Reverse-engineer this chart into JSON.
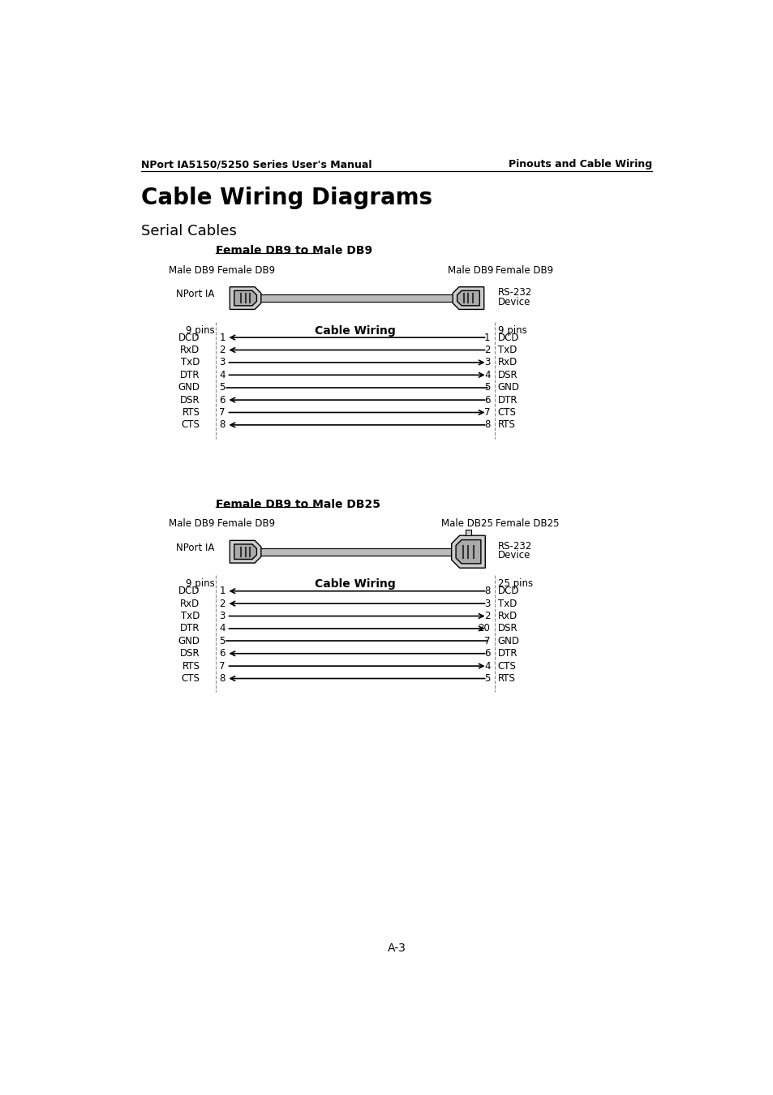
{
  "page_header_left": "NPort IA5150/5250 Series User's Manual",
  "page_header_right": "Pinouts and Cable Wiring",
  "main_title": "Cable Wiring Diagrams",
  "subtitle": "Serial Cables",
  "page_footer": "A-3",
  "diagram1": {
    "title": "Female DB9 to Male DB9",
    "left_col1": "Male DB9",
    "left_col2": "Female DB9",
    "right_col1": "Male DB9",
    "right_col2": "Female DB9",
    "left_label": "NPort IA",
    "right_label1": "RS-232",
    "right_label2": "Device",
    "left_pins_label": "9 pins",
    "right_pins_label": "9 pins",
    "cable_wiring_label": "Cable Wiring",
    "is_db25": false,
    "connections": [
      {
        "left_signal": "DCD",
        "left_pin": "1",
        "right_pin": "1",
        "right_signal": "DCD",
        "direction": "left"
      },
      {
        "left_signal": "RxD",
        "left_pin": "2",
        "right_pin": "2",
        "right_signal": "TxD",
        "direction": "left"
      },
      {
        "left_signal": "TxD",
        "left_pin": "3",
        "right_pin": "3",
        "right_signal": "RxD",
        "direction": "right"
      },
      {
        "left_signal": "DTR",
        "left_pin": "4",
        "right_pin": "4",
        "right_signal": "DSR",
        "direction": "right"
      },
      {
        "left_signal": "GND",
        "left_pin": "5",
        "right_pin": "5",
        "right_signal": "GND",
        "direction": "none"
      },
      {
        "left_signal": "DSR",
        "left_pin": "6",
        "right_pin": "6",
        "right_signal": "DTR",
        "direction": "left"
      },
      {
        "left_signal": "RTS",
        "left_pin": "7",
        "right_pin": "7",
        "right_signal": "CTS",
        "direction": "right"
      },
      {
        "left_signal": "CTS",
        "left_pin": "8",
        "right_pin": "8",
        "right_signal": "RTS",
        "direction": "left"
      }
    ]
  },
  "diagram2": {
    "title": "Female DB9 to Male DB25",
    "left_col1": "Male DB9",
    "left_col2": "Female DB9",
    "right_col1": "Male DB25",
    "right_col2": "Female DB25",
    "left_label": "NPort IA",
    "right_label1": "RS-232",
    "right_label2": "Device",
    "left_pins_label": "9 pins",
    "right_pins_label": "25 pins",
    "cable_wiring_label": "Cable Wiring",
    "is_db25": true,
    "connections": [
      {
        "left_signal": "DCD",
        "left_pin": "1",
        "right_pin": "8",
        "right_signal": "DCD",
        "direction": "left"
      },
      {
        "left_signal": "RxD",
        "left_pin": "2",
        "right_pin": "3",
        "right_signal": "TxD",
        "direction": "left"
      },
      {
        "left_signal": "TxD",
        "left_pin": "3",
        "right_pin": "2",
        "right_signal": "RxD",
        "direction": "right"
      },
      {
        "left_signal": "DTR",
        "left_pin": "4",
        "right_pin": "20",
        "right_signal": "DSR",
        "direction": "right"
      },
      {
        "left_signal": "GND",
        "left_pin": "5",
        "right_pin": "7",
        "right_signal": "GND",
        "direction": "none"
      },
      {
        "left_signal": "DSR",
        "left_pin": "6",
        "right_pin": "6",
        "right_signal": "DTR",
        "direction": "left"
      },
      {
        "left_signal": "RTS",
        "left_pin": "7",
        "right_pin": "4",
        "right_signal": "CTS",
        "direction": "right"
      },
      {
        "left_signal": "CTS",
        "left_pin": "8",
        "right_pin": "5",
        "right_signal": "RTS",
        "direction": "left"
      }
    ]
  },
  "bg_color": "#ffffff",
  "text_color": "#000000",
  "dash_color": "#888888"
}
